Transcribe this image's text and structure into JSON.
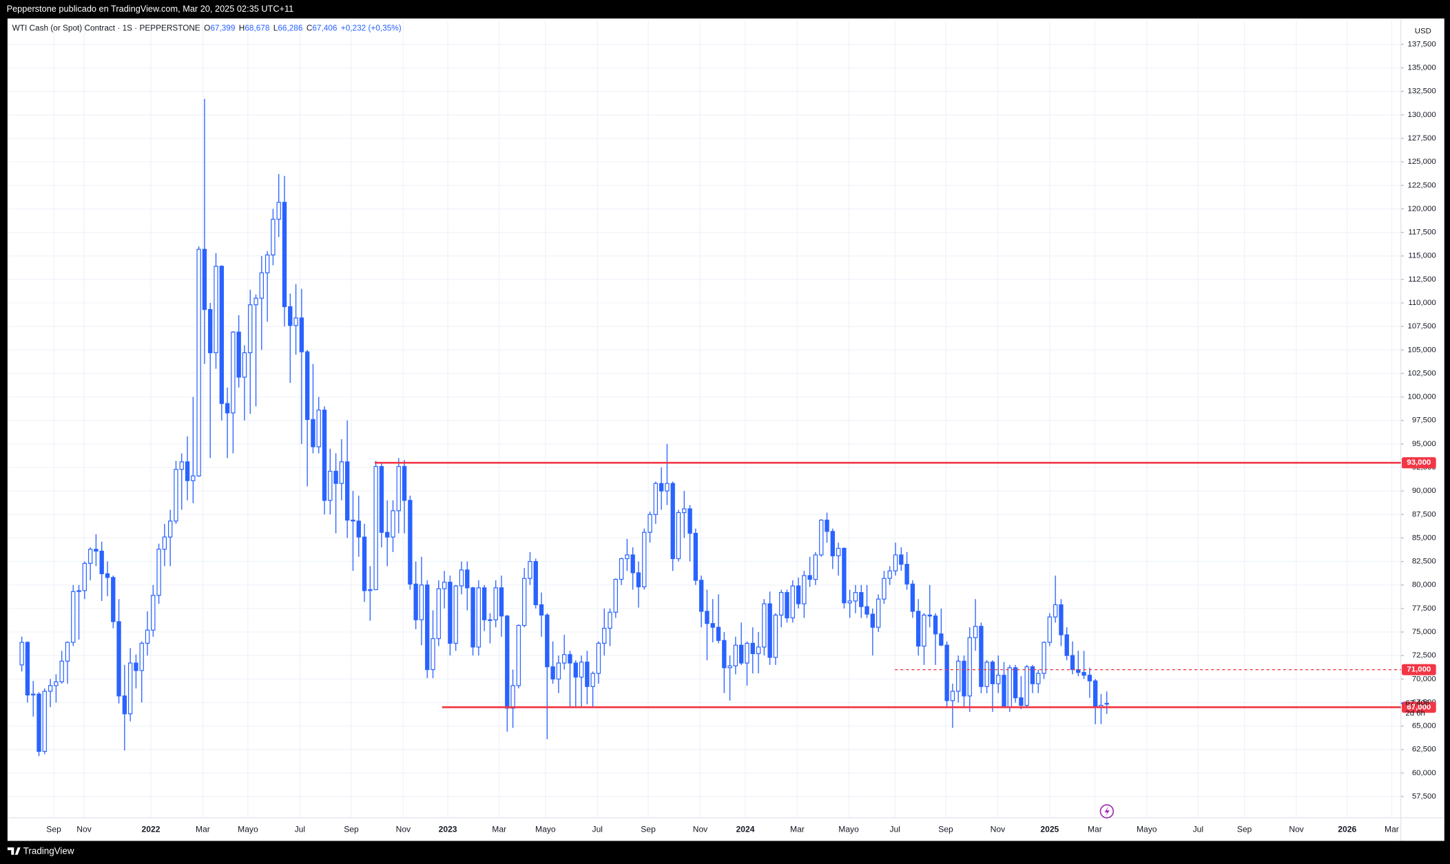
{
  "header": "Pepperstone publicado en TradingView.com, Mar 20, 2025 02:35 UTC+11",
  "footer": "TradingView",
  "chart_data": {
    "type": "candlestick",
    "legend": {
      "title": "WTI Cash (or Spot) Contract · 1S · PEPPERSTONE",
      "items": [
        {
          "key": "O",
          "value": "67,399"
        },
        {
          "key": "H",
          "value": "68,678"
        },
        {
          "key": "L",
          "value": "66,286"
        },
        {
          "key": "C",
          "value": "67,406"
        }
      ],
      "change": "+0,232 (+0,35%)"
    },
    "currency": "USD",
    "color": "#2962ff",
    "grid": true,
    "xlim": [
      -2.5,
      241.5
    ],
    "ylim": [
      55.24,
      140.25
    ],
    "xticks": [
      {
        "value": 5.6,
        "label": "Sep"
      },
      {
        "value": 10.9,
        "label": "Nov"
      },
      {
        "value": 22.6,
        "label": "2022"
      },
      {
        "value": 31.7,
        "label": "Mar"
      },
      {
        "value": 39.6,
        "label": "Mayo"
      },
      {
        "value": 48.7,
        "label": "Jul"
      },
      {
        "value": 57.7,
        "label": "Sep"
      },
      {
        "value": 66.8,
        "label": "Nov"
      },
      {
        "value": 74.6,
        "label": "2023"
      },
      {
        "value": 83.6,
        "label": "Mar"
      },
      {
        "value": 91.7,
        "label": "Mayo"
      },
      {
        "value": 100.8,
        "label": "Jul"
      },
      {
        "value": 109.7,
        "label": "Sep"
      },
      {
        "value": 118.8,
        "label": "Nov"
      },
      {
        "value": 126.7,
        "label": "2024"
      },
      {
        "value": 135.8,
        "label": "Mar"
      },
      {
        "value": 144.8,
        "label": "Mayo"
      },
      {
        "value": 152.9,
        "label": "Jul"
      },
      {
        "value": 161.8,
        "label": "Sep"
      },
      {
        "value": 170.9,
        "label": "Nov"
      },
      {
        "value": 180.0,
        "label": "2025"
      },
      {
        "value": 187.9,
        "label": "Mar"
      },
      {
        "value": 197.0,
        "label": "Mayo"
      },
      {
        "value": 206.0,
        "label": "Jul"
      },
      {
        "value": 214.1,
        "label": "Sep"
      },
      {
        "value": 223.2,
        "label": "Nov"
      },
      {
        "value": 232.1,
        "label": "2026"
      },
      {
        "value": 239.9,
        "label": "Mar"
      }
    ],
    "yticks": [
      {
        "value": 57.5,
        "label": "57,500"
      },
      {
        "value": 60,
        "label": "60,000"
      },
      {
        "value": 62.5,
        "label": "62,500"
      },
      {
        "value": 65,
        "label": "65,000"
      },
      {
        "value": 67.5,
        "label": "67,500"
      },
      {
        "value": 70,
        "label": "70,000"
      },
      {
        "value": 72.5,
        "label": "72,500"
      },
      {
        "value": 75,
        "label": "75,000"
      },
      {
        "value": 77.5,
        "label": "77,500"
      },
      {
        "value": 80,
        "label": "80,000"
      },
      {
        "value": 82.5,
        "label": "82,500"
      },
      {
        "value": 85,
        "label": "85,000"
      },
      {
        "value": 87.5,
        "label": "87,500"
      },
      {
        "value": 90,
        "label": "90,000"
      },
      {
        "value": 92.5,
        "label": "92,500"
      },
      {
        "value": 95,
        "label": "95,000"
      },
      {
        "value": 97.5,
        "label": "97,500"
      },
      {
        "value": 100,
        "label": "100,000"
      },
      {
        "value": 102.5,
        "label": "102,500"
      },
      {
        "value": 105,
        "label": "105,000"
      },
      {
        "value": 107.5,
        "label": "107,500"
      },
      {
        "value": 110,
        "label": "110,000"
      },
      {
        "value": 112.5,
        "label": "112,500"
      },
      {
        "value": 115,
        "label": "115,000"
      },
      {
        "value": 117.5,
        "label": "117,500"
      },
      {
        "value": 120,
        "label": "120,000"
      },
      {
        "value": 122.5,
        "label": "122,500"
      },
      {
        "value": 125,
        "label": "125,000"
      },
      {
        "value": 127.5,
        "label": "127,500"
      },
      {
        "value": 130,
        "label": "130,000"
      },
      {
        "value": 132.5,
        "label": "132,500"
      },
      {
        "value": 135,
        "label": "135,000"
      },
      {
        "value": 137.5,
        "label": "137,500"
      }
    ],
    "levels": [
      {
        "value": 93,
        "label": "93,000",
        "style": "solid",
        "from": 61.8,
        "color": "#f23645"
      },
      {
        "value": 71,
        "label": "71,000",
        "style": "dashed",
        "from": 152.9,
        "color": "#f23645"
      },
      {
        "value": 67,
        "label": "67,000",
        "style": "solid",
        "from": 73.6,
        "color": "#f23645"
      }
    ],
    "last": {
      "value": 67.406,
      "label": "67,406",
      "countdown": "2d 6h"
    },
    "ohlc": [
      [
        71.5,
        74.5,
        70.8,
        73.9
      ],
      [
        73.9,
        74.0,
        67.5,
        68.3
      ],
      [
        68.3,
        69.8,
        66.0,
        68.4
      ],
      [
        68.4,
        68.6,
        61.8,
        62.3
      ],
      [
        62.3,
        69.0,
        62.0,
        68.7
      ],
      [
        68.7,
        70.0,
        67.0,
        69.3
      ],
      [
        69.3,
        70.5,
        67.5,
        69.7
      ],
      [
        69.7,
        73.0,
        69.5,
        71.9
      ],
      [
        71.9,
        74.0,
        69.5,
        73.9
      ],
      [
        73.9,
        80.0,
        73.5,
        79.3
      ],
      [
        79.3,
        80.0,
        74.2,
        79.4
      ],
      [
        79.4,
        82.5,
        78.5,
        82.3
      ],
      [
        82.3,
        84.0,
        80.5,
        83.8
      ],
      [
        83.8,
        85.4,
        82.0,
        83.6
      ],
      [
        83.6,
        84.6,
        78.3,
        81.2
      ],
      [
        81.2,
        82.5,
        78.8,
        80.8
      ],
      [
        80.8,
        81.0,
        75.4,
        76.1
      ],
      [
        76.1,
        78.5,
        67.4,
        68.2
      ],
      [
        68.2,
        71.5,
        62.4,
        66.3
      ],
      [
        66.3,
        73.3,
        65.5,
        71.7
      ],
      [
        71.7,
        72.6,
        69.0,
        70.9
      ],
      [
        70.9,
        74.0,
        67.5,
        73.8
      ],
      [
        73.8,
        77.2,
        72.5,
        75.2
      ],
      [
        75.2,
        80.0,
        74.5,
        78.9
      ],
      [
        78.9,
        84.4,
        78.0,
        83.8
      ],
      [
        83.8,
        86.5,
        82.0,
        85.1
      ],
      [
        85.1,
        88.0,
        82.0,
        86.8
      ],
      [
        86.8,
        93.2,
        86.5,
        92.3
      ],
      [
        92.3,
        94.0,
        88.0,
        93.1
      ],
      [
        93.1,
        95.8,
        89.0,
        91.1
      ],
      [
        91.1,
        100.0,
        88.7,
        91.6
      ],
      [
        91.6,
        116.0,
        91.5,
        115.7
      ],
      [
        115.7,
        131.7,
        103.5,
        109.3
      ],
      [
        109.3,
        110.0,
        93.5,
        104.7
      ],
      [
        104.7,
        115.3,
        103.0,
        113.9
      ],
      [
        113.9,
        114.0,
        97.5,
        99.3
      ],
      [
        99.3,
        101.0,
        93.5,
        98.3
      ],
      [
        98.3,
        107.0,
        94.0,
        106.9
      ],
      [
        106.9,
        108.7,
        101.0,
        102.1
      ],
      [
        102.1,
        105.5,
        97.5,
        104.7
      ],
      [
        104.7,
        111.4,
        98.2,
        109.8
      ],
      [
        109.8,
        110.9,
        99.0,
        110.5
      ],
      [
        110.5,
        115.0,
        105.0,
        113.2
      ],
      [
        113.2,
        115.5,
        108.0,
        115.1
      ],
      [
        115.1,
        120.0,
        114.0,
        118.9
      ],
      [
        118.9,
        123.7,
        117.0,
        120.7
      ],
      [
        120.7,
        123.5,
        107.5,
        109.6
      ],
      [
        109.6,
        111.0,
        101.5,
        107.6
      ],
      [
        107.6,
        112.0,
        104.5,
        108.4
      ],
      [
        108.4,
        111.5,
        95.0,
        104.8
      ],
      [
        104.8,
        105.0,
        90.5,
        97.6
      ],
      [
        97.6,
        103.5,
        94.0,
        94.7
      ],
      [
        94.7,
        100.0,
        94.0,
        98.6
      ],
      [
        98.6,
        99.0,
        87.5,
        89.0
      ],
      [
        89.0,
        94.5,
        87.5,
        92.1
      ],
      [
        92.1,
        94.0,
        85.5,
        90.8
      ],
      [
        90.8,
        95.5,
        89.0,
        93.1
      ],
      [
        93.1,
        97.5,
        85.0,
        86.9
      ],
      [
        86.9,
        90.0,
        81.5,
        86.8
      ],
      [
        86.8,
        89.5,
        83.0,
        85.1
      ],
      [
        85.1,
        86.5,
        78.2,
        79.4
      ],
      [
        79.4,
        82.0,
        76.2,
        79.5
      ],
      [
        79.5,
        93.2,
        79.5,
        92.6
      ],
      [
        92.6,
        93.0,
        84.0,
        85.6
      ],
      [
        85.6,
        89.0,
        82.0,
        85.1
      ],
      [
        85.1,
        89.0,
        83.5,
        87.9
      ],
      [
        87.9,
        93.5,
        85.5,
        92.6
      ],
      [
        92.6,
        93.3,
        85.5,
        89.0
      ],
      [
        89.0,
        89.5,
        79.5,
        80.1
      ],
      [
        80.1,
        82.5,
        75.3,
        76.3
      ],
      [
        76.3,
        83.0,
        73.6,
        80.0
      ],
      [
        80.0,
        80.5,
        70.1,
        71.0
      ],
      [
        71.0,
        77.3,
        70.1,
        74.3
      ],
      [
        74.3,
        80.5,
        73.5,
        79.6
      ],
      [
        79.6,
        81.5,
        77.5,
        80.3
      ],
      [
        80.3,
        81.0,
        72.5,
        73.8
      ],
      [
        73.8,
        80.0,
        73.0,
        79.9
      ],
      [
        79.9,
        82.5,
        79.0,
        81.6
      ],
      [
        81.6,
        82.5,
        77.3,
        79.7
      ],
      [
        79.7,
        79.8,
        72.5,
        73.4
      ],
      [
        73.4,
        80.5,
        72.5,
        79.7
      ],
      [
        79.7,
        80.0,
        75.1,
        76.3
      ],
      [
        76.3,
        77.0,
        73.8,
        76.3
      ],
      [
        76.3,
        80.5,
        75.5,
        79.7
      ],
      [
        79.7,
        81.0,
        74.5,
        76.7
      ],
      [
        76.7,
        76.8,
        64.4,
        66.9
      ],
      [
        66.9,
        71.0,
        64.8,
        69.3
      ],
      [
        69.3,
        75.8,
        69.0,
        75.7
      ],
      [
        75.7,
        81.8,
        75.5,
        80.7
      ],
      [
        80.7,
        83.5,
        80.0,
        82.5
      ],
      [
        82.5,
        82.8,
        77.5,
        77.9
      ],
      [
        77.9,
        79.2,
        74.5,
        76.8
      ],
      [
        76.8,
        77.0,
        63.6,
        71.3
      ],
      [
        71.3,
        74.0,
        69.5,
        70.0
      ],
      [
        70.0,
        72.5,
        68.5,
        71.7
      ],
      [
        71.7,
        74.7,
        71.0,
        72.6
      ],
      [
        72.6,
        73.0,
        67.0,
        71.7
      ],
      [
        71.7,
        72.0,
        67.0,
        70.2
      ],
      [
        70.2,
        72.5,
        67.0,
        71.8
      ],
      [
        71.8,
        73.0,
        67.3,
        69.2
      ],
      [
        69.2,
        70.8,
        67.0,
        70.6
      ],
      [
        70.6,
        74.0,
        69.5,
        73.8
      ],
      [
        73.8,
        77.5,
        72.5,
        75.4
      ],
      [
        75.4,
        77.5,
        73.5,
        77.1
      ],
      [
        77.1,
        80.7,
        76.5,
        80.6
      ],
      [
        80.6,
        82.9,
        80.0,
        82.8
      ],
      [
        82.8,
        84.9,
        81.5,
        83.2
      ],
      [
        83.2,
        84.0,
        79.5,
        81.3
      ],
      [
        81.3,
        82.5,
        77.6,
        79.8
      ],
      [
        79.8,
        86.0,
        79.5,
        85.6
      ],
      [
        85.6,
        87.8,
        84.5,
        87.5
      ],
      [
        87.5,
        91.0,
        86.5,
        90.8
      ],
      [
        90.8,
        92.5,
        88.0,
        90.0
      ],
      [
        90.0,
        95.0,
        88.5,
        90.8
      ],
      [
        90.8,
        91.0,
        81.5,
        82.8
      ],
      [
        82.8,
        88.0,
        82.5,
        87.7
      ],
      [
        87.7,
        90.0,
        85.0,
        88.1
      ],
      [
        88.1,
        88.5,
        82.5,
        85.5
      ],
      [
        85.5,
        86.0,
        80.0,
        80.5
      ],
      [
        80.5,
        81.0,
        75.5,
        77.2
      ],
      [
        77.2,
        79.5,
        72.0,
        75.9
      ],
      [
        75.9,
        78.5,
        73.9,
        75.5
      ],
      [
        75.5,
        79.0,
        73.8,
        74.1
      ],
      [
        74.1,
        75.0,
        68.5,
        71.2
      ],
      [
        71.2,
        72.5,
        67.7,
        71.4
      ],
      [
        71.4,
        74.5,
        70.5,
        73.6
      ],
      [
        73.6,
        76.0,
        71.5,
        71.7
      ],
      [
        71.7,
        74.0,
        69.3,
        73.8
      ],
      [
        73.8,
        75.5,
        70.6,
        72.7
      ],
      [
        72.7,
        75.0,
        70.6,
        73.4
      ],
      [
        73.4,
        78.5,
        72.5,
        78.0
      ],
      [
        78.0,
        79.3,
        71.5,
        72.3
      ],
      [
        72.3,
        77.0,
        71.5,
        76.8
      ],
      [
        76.8,
        79.5,
        75.5,
        79.2
      ],
      [
        79.2,
        79.5,
        76.0,
        76.5
      ],
      [
        76.5,
        80.5,
        76.0,
        79.9
      ],
      [
        79.9,
        80.8,
        77.5,
        78.0
      ],
      [
        78.0,
        81.5,
        76.5,
        81.0
      ],
      [
        81.0,
        83.0,
        79.8,
        80.6
      ],
      [
        80.6,
        83.5,
        80.0,
        83.2
      ],
      [
        83.2,
        87.0,
        83.0,
        86.9
      ],
      [
        86.9,
        87.7,
        84.5,
        85.7
      ],
      [
        85.7,
        86.0,
        81.7,
        83.1
      ],
      [
        83.1,
        84.5,
        81.0,
        83.9
      ],
      [
        83.9,
        84.0,
        77.5,
        78.1
      ],
      [
        78.1,
        79.5,
        76.5,
        78.3
      ],
      [
        78.3,
        80.0,
        77.0,
        79.2
      ],
      [
        79.2,
        80.0,
        76.5,
        77.7
      ],
      [
        77.7,
        80.0,
        76.5,
        76.9
      ],
      [
        76.9,
        77.5,
        72.5,
        75.5
      ],
      [
        75.5,
        79.0,
        75.0,
        78.5
      ],
      [
        78.5,
        81.5,
        78.0,
        80.7
      ],
      [
        80.7,
        82.0,
        80.0,
        81.5
      ],
      [
        81.5,
        84.5,
        81.0,
        83.2
      ],
      [
        83.2,
        84.0,
        81.5,
        82.2
      ],
      [
        82.2,
        83.5,
        79.5,
        80.1
      ],
      [
        80.1,
        80.5,
        76.5,
        77.2
      ],
      [
        77.2,
        78.5,
        72.5,
        73.5
      ],
      [
        73.5,
        77.0,
        71.5,
        76.8
      ],
      [
        76.8,
        80.0,
        75.5,
        76.7
      ],
      [
        76.7,
        77.0,
        71.5,
        74.8
      ],
      [
        74.8,
        77.5,
        73.5,
        73.6
      ],
      [
        73.6,
        74.0,
        67.0,
        67.7
      ],
      [
        67.7,
        69.5,
        64.8,
        68.7
      ],
      [
        68.7,
        72.5,
        67.5,
        71.9
      ],
      [
        71.9,
        72.5,
        67.0,
        68.2
      ],
      [
        68.2,
        75.5,
        66.5,
        74.4
      ],
      [
        74.4,
        78.5,
        73.0,
        75.6
      ],
      [
        75.6,
        76.0,
        68.5,
        69.2
      ],
      [
        69.2,
        72.0,
        68.5,
        71.8
      ],
      [
        71.8,
        72.0,
        66.5,
        69.5
      ],
      [
        69.5,
        72.5,
        68.5,
        70.4
      ],
      [
        70.4,
        71.8,
        66.9,
        67.0
      ],
      [
        67.0,
        71.5,
        66.5,
        71.2
      ],
      [
        71.2,
        71.5,
        67.5,
        68.0
      ],
      [
        68.0,
        70.3,
        66.8,
        67.2
      ],
      [
        67.2,
        71.5,
        66.9,
        71.3
      ],
      [
        71.3,
        71.5,
        68.5,
        69.5
      ],
      [
        69.5,
        71.0,
        68.5,
        70.6
      ],
      [
        70.6,
        74.0,
        70.0,
        73.9
      ],
      [
        73.9,
        77.0,
        73.5,
        76.6
      ],
      [
        76.6,
        81.0,
        76.0,
        77.9
      ],
      [
        77.9,
        78.5,
        73.5,
        74.7
      ],
      [
        74.7,
        75.5,
        72.0,
        72.5
      ],
      [
        72.5,
        74.0,
        70.5,
        71.0
      ],
      [
        71.0,
        73.0,
        70.3,
        70.7
      ],
      [
        70.7,
        73.0,
        70.0,
        70.4
      ],
      [
        70.4,
        71.2,
        68.0,
        69.8
      ],
      [
        69.8,
        70.0,
        65.2,
        67.0
      ],
      [
        67.0,
        68.4,
        65.2,
        67.2
      ],
      [
        67.399,
        68.678,
        66.286,
        67.406
      ]
    ]
  }
}
